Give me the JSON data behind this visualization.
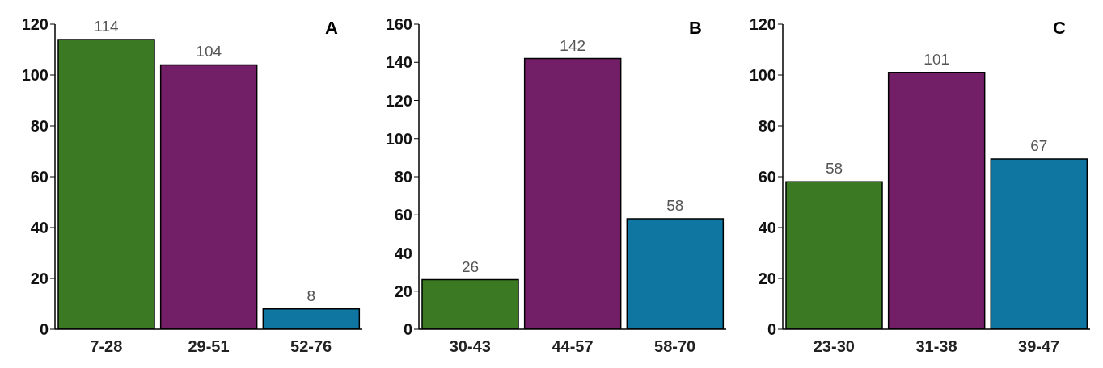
{
  "chart_data": [
    {
      "type": "bar",
      "title": "A",
      "categories": [
        "7-28",
        "29-51",
        "52-76"
      ],
      "values": [
        114,
        104,
        8
      ],
      "colors": [
        "#3b7a22",
        "#731f68",
        "#0e76a0"
      ],
      "ylim": [
        0,
        120
      ],
      "yticks": [
        0,
        20,
        40,
        60,
        80,
        100,
        120
      ],
      "data_labels": true
    },
    {
      "type": "bar",
      "title": "B",
      "categories": [
        "30-43",
        "44-57",
        "58-70"
      ],
      "values": [
        26,
        142,
        58
      ],
      "colors": [
        "#3b7a22",
        "#731f68",
        "#0e76a0"
      ],
      "ylim": [
        0,
        160
      ],
      "yticks": [
        0,
        20,
        40,
        60,
        80,
        100,
        120,
        140,
        160
      ],
      "data_labels": true
    },
    {
      "type": "bar",
      "title": "C",
      "categories": [
        "23-30",
        "31-38",
        "39-47"
      ],
      "values": [
        58,
        101,
        67
      ],
      "colors": [
        "#3b7a22",
        "#731f68",
        "#0e76a0"
      ],
      "ylim": [
        0,
        120
      ],
      "yticks": [
        0,
        20,
        40,
        60,
        80,
        100,
        120
      ],
      "data_labels": true
    }
  ]
}
